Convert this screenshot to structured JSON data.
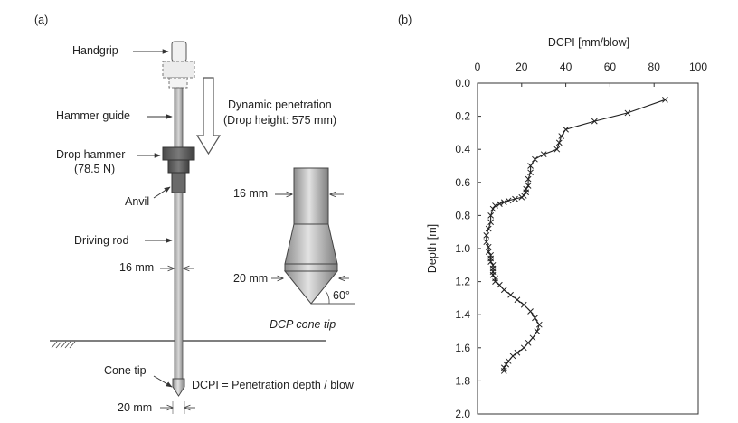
{
  "panel_a": {
    "label": "(a)",
    "handgrip": "Handgrip",
    "hammer_guide": "Hammer guide",
    "drop_hammer": "Drop hammer",
    "drop_hammer_weight": "(78.5 N)",
    "anvil": "Anvil",
    "driving_rod": "Driving rod",
    "rod_diameter": "16 mm",
    "cone_tip": "Cone tip",
    "cone_diameter": "20 mm",
    "dynamic_penetration": "Dynamic penetration",
    "drop_height": "(Drop height: 575 mm)",
    "detail_rod_diameter": "16 mm",
    "detail_cone_diameter": "20 mm",
    "cone_angle": "60°",
    "detail_title": "DCP cone tip",
    "dcpi_formula": "DCPI = Penetration depth / blow"
  },
  "panel_b": {
    "label": "(b)"
  },
  "chart_data": {
    "type": "line",
    "xlabel": "DCPI [mm/blow]",
    "ylabel": "Depth [m]",
    "xlim": [
      0,
      100
    ],
    "ylim": [
      0.0,
      2.0
    ],
    "y_inverted": true,
    "x_axis_position": "top",
    "x_ticks": [
      "0",
      "20",
      "40",
      "60",
      "80",
      "100"
    ],
    "y_ticks": [
      "0.0",
      "0.2",
      "0.4",
      "0.6",
      "0.8",
      "1.0",
      "1.2",
      "1.4",
      "1.6",
      "1.8",
      "2.0"
    ],
    "marker": "x",
    "grid": false,
    "series": [
      {
        "x": [
          85,
          68,
          53,
          40,
          38,
          37,
          36,
          30,
          26,
          24,
          24,
          23,
          23,
          22,
          22,
          21,
          20,
          17,
          14,
          12,
          10,
          8,
          7,
          6,
          6,
          5,
          4,
          4,
          5,
          5,
          6,
          6,
          6,
          7,
          7,
          7,
          7,
          8,
          8,
          10,
          12,
          15,
          18,
          21,
          24,
          26,
          28,
          27,
          25,
          23,
          21,
          18,
          16,
          14,
          13,
          12,
          12
        ],
        "y": [
          0.1,
          0.18,
          0.23,
          0.28,
          0.32,
          0.36,
          0.4,
          0.43,
          0.46,
          0.5,
          0.54,
          0.58,
          0.62,
          0.64,
          0.66,
          0.68,
          0.69,
          0.7,
          0.71,
          0.72,
          0.73,
          0.74,
          0.76,
          0.8,
          0.84,
          0.88,
          0.92,
          0.96,
          0.99,
          1.02,
          1.04,
          1.06,
          1.08,
          1.1,
          1.12,
          1.14,
          1.16,
          1.18,
          1.2,
          1.22,
          1.25,
          1.28,
          1.31,
          1.34,
          1.38,
          1.42,
          1.46,
          1.5,
          1.54,
          1.57,
          1.6,
          1.63,
          1.65,
          1.68,
          1.7,
          1.72,
          1.74
        ]
      }
    ]
  }
}
